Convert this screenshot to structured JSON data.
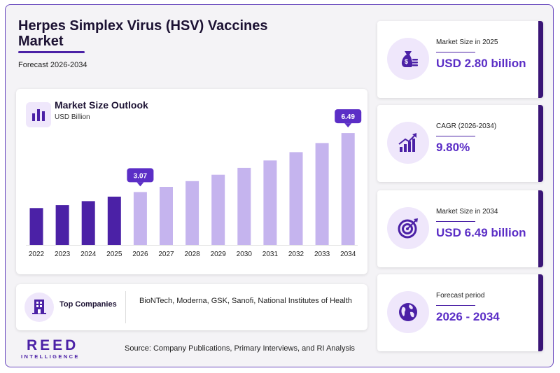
{
  "header": {
    "title": "Herpes Simplex Virus (HSV) Vaccines Market",
    "subtitle": "Forecast 2026-2034"
  },
  "chart_panel": {
    "title": "Market Size Outlook",
    "unit": "USD Billion"
  },
  "chart_data": {
    "type": "bar",
    "categories": [
      "2022",
      "2023",
      "2024",
      "2025",
      "2026",
      "2027",
      "2028",
      "2029",
      "2030",
      "2031",
      "2032",
      "2033",
      "2034"
    ],
    "values": [
      2.14,
      2.31,
      2.54,
      2.8,
      3.07,
      3.37,
      3.7,
      4.07,
      4.47,
      4.9,
      5.38,
      5.91,
      6.49
    ],
    "callouts": [
      {
        "category": "2026",
        "label": "3.07"
      },
      {
        "category": "2034",
        "label": "6.49"
      }
    ],
    "ylim": [
      0,
      6.9
    ],
    "colors": {
      "historical": "#4b21a6",
      "forecast": "#c5b4ee",
      "callout": "#5b2ec6"
    },
    "historical_through": "2025",
    "grid": false
  },
  "companies": {
    "label": "Top Companies",
    "list": "BioNTech, Moderna, GSK, Sanofi, National Institutes of Health"
  },
  "brand": {
    "name": "REED",
    "tagline": "INTELLIGENCE"
  },
  "source": "Source: Company Publications, Primary Interviews, and RI Analysis",
  "stats": [
    {
      "label": "Market Size in 2025",
      "value": "USD 2.80 billion",
      "icon": "money-bag-icon"
    },
    {
      "label": "CAGR (2026-2034)",
      "value": "9.80%",
      "icon": "growth-chart-icon"
    },
    {
      "label": "Market Size in 2034",
      "value": "USD 6.49 billion",
      "icon": "target-icon"
    },
    {
      "label": "Forecast period",
      "value": "2026 - 2034",
      "icon": "globe-icon"
    }
  ],
  "theme": {
    "accent": "#4b21a6",
    "accent_light": "#efe7fb",
    "dark_edge": "#3a1576"
  }
}
